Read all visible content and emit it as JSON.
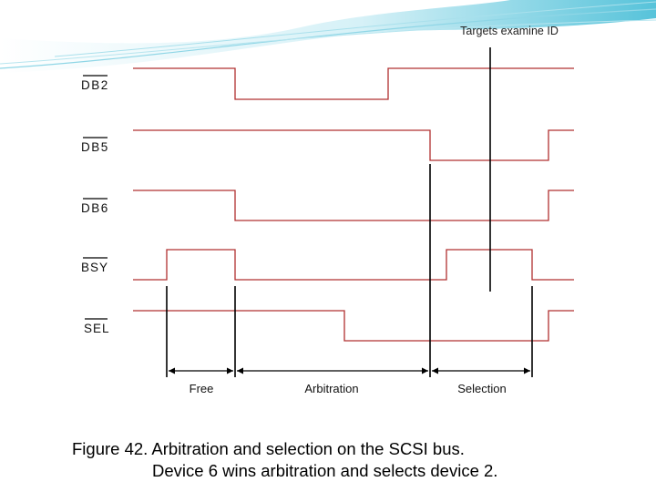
{
  "diagram": {
    "annotation": "Targets examine ID",
    "signals": [
      {
        "label": "DB2",
        "overbar": true
      },
      {
        "label": "DB5",
        "overbar": true
      },
      {
        "label": "DB6",
        "overbar": true
      },
      {
        "label": "BSY",
        "overbar": true
      },
      {
        "label": "SEL",
        "overbar": true
      }
    ],
    "phases": [
      {
        "label": "Free"
      },
      {
        "label": "Arbitration"
      },
      {
        "label": "Selection"
      }
    ],
    "colors": {
      "signal": "#b03030",
      "marker": "#000000",
      "wave_top": "#5bc6dc",
      "wave_light": "#cdeef5"
    }
  },
  "caption": {
    "line1": "Figure 42. Arbitration and selection on the SCSI bus.",
    "line2": "Device 6 wins arbitration and selects device 2."
  }
}
